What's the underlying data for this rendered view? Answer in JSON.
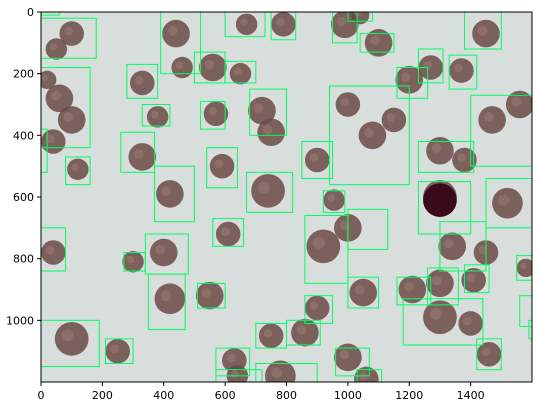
{
  "image": {
    "description_free": true,
    "x_range": [
      0,
      1600
    ],
    "y_range": [
      1200,
      0
    ],
    "background_color": "#d7dedb",
    "box_color": "#00ff66",
    "cell_color": "#6b4a45"
  },
  "axes": {
    "x_ticks": [
      "0",
      "200",
      "400",
      "600",
      "800",
      "1000",
      "1200",
      "1400"
    ],
    "y_ticks": [
      "0",
      "200",
      "400",
      "600",
      "800",
      "1000"
    ]
  },
  "boxes": [
    [
      0,
      0,
      60,
      10
    ],
    [
      0,
      20,
      180,
      150
    ],
    [
      0,
      180,
      160,
      440
    ],
    [
      0,
      380,
      20,
      520
    ],
    [
      80,
      470,
      160,
      560
    ],
    [
      0,
      700,
      80,
      840
    ],
    [
      0,
      1000,
      190,
      1150
    ],
    [
      210,
      1060,
      300,
      1140
    ],
    [
      270,
      780,
      340,
      840
    ],
    [
      280,
      170,
      380,
      280
    ],
    [
      260,
      390,
      370,
      520
    ],
    [
      330,
      300,
      420,
      370
    ],
    [
      370,
      500,
      500,
      680
    ],
    [
      340,
      720,
      480,
      850
    ],
    [
      350,
      850,
      470,
      1030
    ],
    [
      390,
      0,
      520,
      200
    ],
    [
      500,
      130,
      600,
      230
    ],
    [
      520,
      290,
      600,
      380
    ],
    [
      540,
      440,
      640,
      570
    ],
    [
      560,
      670,
      660,
      760
    ],
    [
      510,
      880,
      600,
      960
    ],
    [
      600,
      160,
      700,
      230
    ],
    [
      600,
      0,
      730,
      80
    ],
    [
      680,
      250,
      800,
      400
    ],
    [
      670,
      520,
      820,
      650
    ],
    [
      750,
      0,
      830,
      90
    ],
    [
      850,
      420,
      950,
      540
    ],
    [
      920,
      580,
      990,
      650
    ],
    [
      860,
      660,
      1000,
      880
    ],
    [
      950,
      0,
      1030,
      100
    ],
    [
      1000,
      0,
      1080,
      30
    ],
    [
      1040,
      70,
      1150,
      130
    ],
    [
      940,
      240,
      1200,
      560
    ],
    [
      1000,
      640,
      1130,
      770
    ],
    [
      1000,
      860,
      1100,
      960
    ],
    [
      860,
      920,
      950,
      1010
    ],
    [
      800,
      1000,
      910,
      1080
    ],
    [
      700,
      1010,
      800,
      1090
    ],
    [
      570,
      1090,
      680,
      1180
    ],
    [
      570,
      1160,
      720,
      1200
    ],
    [
      700,
      1140,
      900,
      1200
    ],
    [
      960,
      1090,
      1070,
      1180
    ],
    [
      1030,
      1160,
      1110,
      1200
    ],
    [
      1160,
      180,
      1260,
      280
    ],
    [
      1230,
      120,
      1310,
      230
    ],
    [
      1330,
      140,
      1420,
      250
    ],
    [
      1380,
      0,
      1500,
      120
    ],
    [
      1400,
      270,
      1600,
      500
    ],
    [
      1230,
      420,
      1410,
      520
    ],
    [
      1230,
      550,
      1400,
      720
    ],
    [
      1300,
      680,
      1450,
      840
    ],
    [
      1260,
      830,
      1360,
      950
    ],
    [
      1160,
      860,
      1270,
      950
    ],
    [
      1180,
      930,
      1440,
      1080
    ],
    [
      1420,
      1060,
      1500,
      1160
    ],
    [
      1380,
      820,
      1460,
      910
    ],
    [
      1450,
      540,
      1600,
      700
    ],
    [
      1550,
      790,
      1600,
      870
    ],
    [
      1560,
      920,
      1600,
      1020
    ],
    [
      1590,
      1000,
      1600,
      1060
    ]
  ],
  "cells": [
    [
      100,
      70,
      40
    ],
    [
      50,
      120,
      35
    ],
    [
      20,
      220,
      30
    ],
    [
      60,
      280,
      45
    ],
    [
      100,
      350,
      45
    ],
    [
      40,
      420,
      40
    ],
    [
      120,
      510,
      35
    ],
    [
      40,
      780,
      40
    ],
    [
      100,
      1060,
      55
    ],
    [
      250,
      1100,
      40
    ],
    [
      300,
      810,
      35
    ],
    [
      330,
      470,
      45
    ],
    [
      330,
      230,
      40
    ],
    [
      380,
      340,
      35
    ],
    [
      420,
      590,
      45
    ],
    [
      400,
      780,
      45
    ],
    [
      420,
      930,
      50
    ],
    [
      440,
      70,
      45
    ],
    [
      460,
      180,
      35
    ],
    [
      560,
      180,
      45
    ],
    [
      570,
      330,
      40
    ],
    [
      590,
      500,
      40
    ],
    [
      610,
      720,
      40
    ],
    [
      550,
      920,
      45
    ],
    [
      650,
      200,
      35
    ],
    [
      670,
      40,
      35
    ],
    [
      720,
      320,
      45
    ],
    [
      750,
      390,
      45
    ],
    [
      740,
      580,
      55
    ],
    [
      790,
      40,
      40
    ],
    [
      900,
      480,
      40
    ],
    [
      955,
      610,
      35
    ],
    [
      920,
      760,
      55
    ],
    [
      1000,
      700,
      45
    ],
    [
      1050,
      910,
      45
    ],
    [
      900,
      960,
      40
    ],
    [
      860,
      1040,
      45
    ],
    [
      750,
      1050,
      40
    ],
    [
      630,
      1130,
      40
    ],
    [
      640,
      1180,
      35
    ],
    [
      780,
      1180,
      50
    ],
    [
      990,
      40,
      45
    ],
    [
      1040,
      10,
      30
    ],
    [
      1100,
      100,
      45
    ],
    [
      1000,
      300,
      40
    ],
    [
      1080,
      400,
      45
    ],
    [
      1150,
      350,
      40
    ],
    [
      1200,
      220,
      45
    ],
    [
      1270,
      180,
      40
    ],
    [
      1370,
      190,
      40
    ],
    [
      1450,
      70,
      45
    ],
    [
      1470,
      350,
      45
    ],
    [
      1560,
      300,
      45
    ],
    [
      1300,
      450,
      45
    ],
    [
      1380,
      480,
      40
    ],
    [
      1300,
      600,
      55
    ],
    [
      1340,
      760,
      45
    ],
    [
      1450,
      780,
      40
    ],
    [
      1410,
      870,
      40
    ],
    [
      1300,
      880,
      45
    ],
    [
      1210,
      900,
      45
    ],
    [
      1300,
      990,
      55
    ],
    [
      1400,
      1010,
      40
    ],
    [
      1460,
      1110,
      40
    ],
    [
      1520,
      620,
      50
    ],
    [
      1580,
      830,
      30
    ],
    [
      1060,
      1190,
      40
    ],
    [
      1000,
      1120,
      45
    ]
  ],
  "dark_cell": [
    1300,
    610,
    55
  ]
}
